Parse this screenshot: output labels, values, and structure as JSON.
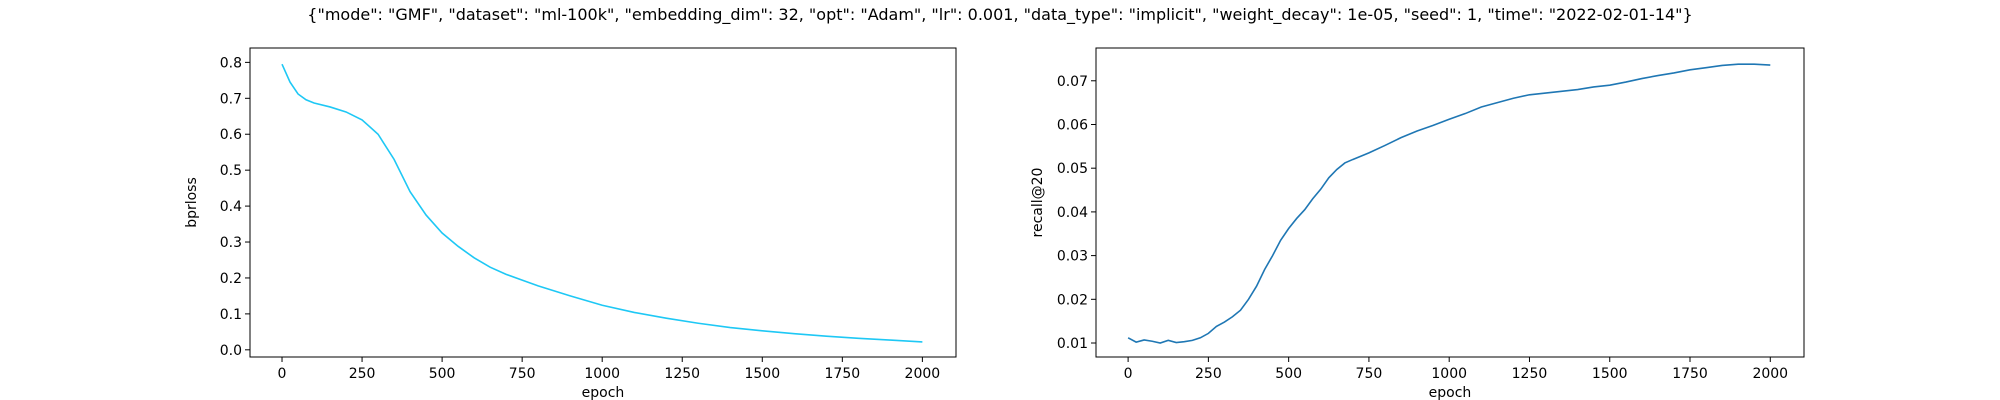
{
  "figure": {
    "suptitle": "{\"mode\": \"GMF\", \"dataset\": \"ml-100k\", \"embedding_dim\": 32, \"opt\": \"Adam\", \"lr\": 0.001, \"data_type\": \"implicit\", \"weight_decay\": 1e-05, \"seed\": 1, \"time\": \"2022-02-01-14\"}"
  },
  "chart_data": [
    {
      "type": "line",
      "xlabel": "epoch",
      "ylabel": "bprloss",
      "xlim": [
        -100,
        2105
      ],
      "ylim": [
        -0.02,
        0.84
      ],
      "xticks": [
        0,
        250,
        500,
        750,
        1000,
        1250,
        1500,
        1750,
        2000
      ],
      "yticks": [
        0.0,
        0.1,
        0.2,
        0.3,
        0.4,
        0.5,
        0.6,
        0.7,
        0.8
      ],
      "grid": false,
      "line_color": "#1ec8f5",
      "series": [
        {
          "x": [
            0,
            25,
            50,
            75,
            100,
            150,
            200,
            250,
            300,
            350,
            400,
            450,
            500,
            550,
            600,
            650,
            700,
            750,
            800,
            900,
            1000,
            1100,
            1200,
            1300,
            1400,
            1500,
            1600,
            1700,
            1800,
            1900,
            2000
          ],
          "y": [
            0.795,
            0.745,
            0.712,
            0.696,
            0.687,
            0.676,
            0.662,
            0.64,
            0.6,
            0.53,
            0.44,
            0.375,
            0.325,
            0.288,
            0.256,
            0.23,
            0.21,
            0.194,
            0.178,
            0.15,
            0.124,
            0.104,
            0.088,
            0.074,
            0.062,
            0.053,
            0.045,
            0.038,
            0.032,
            0.027,
            0.022
          ]
        }
      ]
    },
    {
      "type": "line",
      "xlabel": "epoch",
      "ylabel": "recall@20",
      "xlim": [
        -100,
        2105
      ],
      "ylim": [
        0.0068,
        0.0775
      ],
      "xticks": [
        0,
        250,
        500,
        750,
        1000,
        1250,
        1500,
        1750,
        2000
      ],
      "yticks": [
        0.01,
        0.02,
        0.03,
        0.04,
        0.05,
        0.06,
        0.07
      ],
      "grid": false,
      "line_color": "#1f77b4",
      "series": [
        {
          "x": [
            0,
            25,
            50,
            75,
            100,
            125,
            150,
            175,
            200,
            225,
            250,
            275,
            300,
            325,
            350,
            375,
            400,
            425,
            450,
            475,
            500,
            525,
            550,
            575,
            600,
            625,
            650,
            675,
            700,
            750,
            800,
            850,
            900,
            950,
            1000,
            1050,
            1100,
            1150,
            1200,
            1250,
            1300,
            1350,
            1400,
            1450,
            1500,
            1550,
            1600,
            1650,
            1700,
            1750,
            1800,
            1850,
            1900,
            1950,
            2000
          ],
          "y": [
            0.0112,
            0.0102,
            0.0107,
            0.0104,
            0.01,
            0.0106,
            0.0101,
            0.0103,
            0.0106,
            0.0112,
            0.0122,
            0.0138,
            0.0148,
            0.016,
            0.0175,
            0.02,
            0.023,
            0.0268,
            0.03,
            0.0335,
            0.0362,
            0.0385,
            0.0405,
            0.043,
            0.0452,
            0.0478,
            0.0497,
            0.0512,
            0.052,
            0.0535,
            0.0552,
            0.057,
            0.0585,
            0.0598,
            0.0612,
            0.0625,
            0.064,
            0.065,
            0.066,
            0.0668,
            0.0672,
            0.0676,
            0.068,
            0.0686,
            0.069,
            0.0697,
            0.0705,
            0.0712,
            0.0718,
            0.0725,
            0.073,
            0.0735,
            0.0738,
            0.0738,
            0.0736
          ]
        }
      ]
    }
  ]
}
